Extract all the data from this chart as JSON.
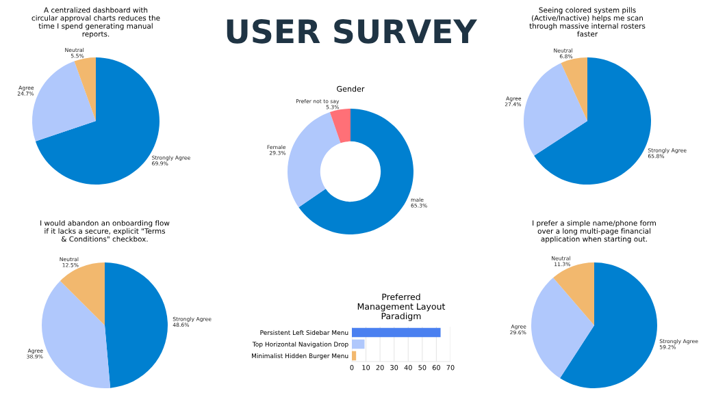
{
  "chart_data": [
    {
      "type": "pie",
      "title": "A centralized dashboard with\ncircular approval charts reduces the\ntime I spend generating manual\nreports.",
      "categories": [
        "Strongly Agree",
        "Agree",
        "Neutral"
      ],
      "values": [
        69.9,
        24.7,
        5.5
      ],
      "value_labels": [
        "69.9%",
        "24.7%",
        "5.5%"
      ],
      "colors": [
        "#0080d0",
        "#b0c8fc",
        "#f2b86e"
      ]
    },
    {
      "type": "other",
      "title": "USER SURVEY"
    },
    {
      "type": "pie",
      "title": "Seeing colored system pills\n(Active/Inactive) helps me scan\nthrough massive internal rosters\nfaster",
      "categories": [
        "Strongly Agree",
        "Agree",
        "Neutral"
      ],
      "values": [
        65.8,
        27.4,
        6.8
      ],
      "value_labels": [
        "65.8%",
        "27.4%",
        "6.8%"
      ],
      "colors": [
        "#0080d0",
        "#b0c8fc",
        "#f2b86e"
      ]
    },
    {
      "type": "donut",
      "title": "Gender",
      "categories": [
        "male",
        "Female",
        "Prefer not to say"
      ],
      "values": [
        65.3,
        29.3,
        5.3
      ],
      "value_labels": [
        "65.3%",
        "29.3%",
        "5.3%"
      ],
      "colors": [
        "#0080d0",
        "#b0c8fc",
        "#ff7077"
      ]
    },
    {
      "type": "pie",
      "title": "I would abandon an onboarding flow\nif it lacks a secure, explicit \"Terms\n& Conditions\" checkbox.",
      "categories": [
        "Strongly Agree",
        "Agree",
        "Neutral"
      ],
      "values": [
        48.6,
        38.9,
        12.5
      ],
      "value_labels": [
        "48.6%",
        "38.9%",
        "12.5%"
      ],
      "colors": [
        "#0080d0",
        "#b0c8fc",
        "#f2b86e"
      ]
    },
    {
      "type": "bar",
      "orientation": "horizontal",
      "title": "Preferred\nManagement Layout\nParadigm",
      "categories": [
        "Persistent Left Sidebar Menu",
        "Top Horizontal Navigation Drop",
        "Minimalist Hidden Burger Menu"
      ],
      "values": [
        63,
        9,
        3
      ],
      "colors": [
        "#4a80f0",
        "#b0c8fc",
        "#f2b86e"
      ],
      "xlim": [
        0,
        70
      ],
      "xticks": [
        0,
        10,
        20,
        30,
        40,
        50,
        60,
        70
      ],
      "grid": "x"
    },
    {
      "type": "pie",
      "title": "I prefer a simple name/phone form\nover a long multi-page financial\napplication when starting out.",
      "categories": [
        "Strongly Agree",
        "Agree",
        "Neutral"
      ],
      "values": [
        59.2,
        29.6,
        11.3
      ],
      "value_labels": [
        "59.2%",
        "29.6%",
        "11.3%"
      ],
      "colors": [
        "#0080d0",
        "#b0c8fc",
        "#f2b86e"
      ]
    }
  ]
}
